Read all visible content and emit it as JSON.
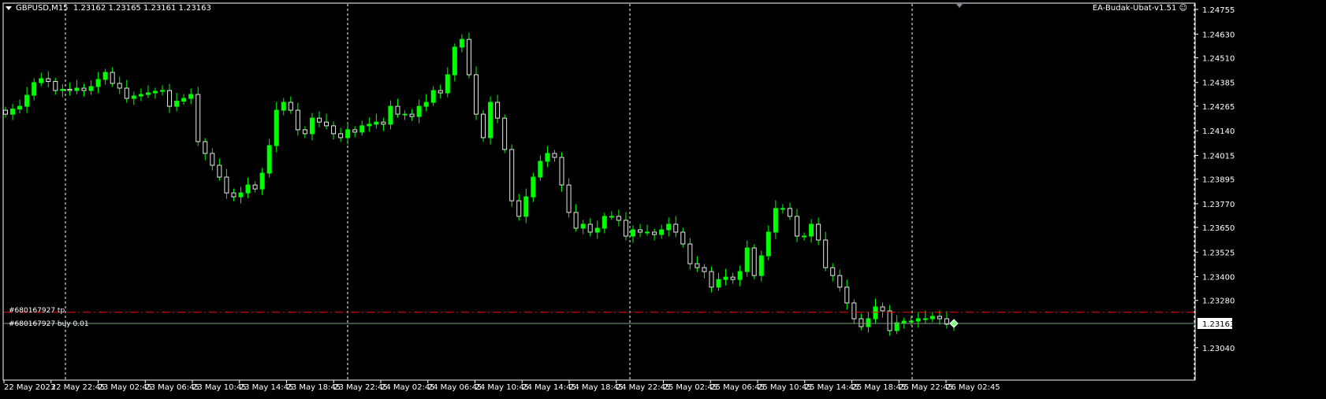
{
  "header": {
    "menu_icon": "triangle-down-icon",
    "symbol": "GBPUSD,M15",
    "ohlc": "1.23162 1.23165 1.23161 1.23163",
    "expert": "EA-Budak-Ubat-v1.51",
    "expert_icon": "smiley-icon"
  },
  "orders": {
    "tp_label": "#680167927 tp",
    "buy_label": "#680167927 buy 0.01",
    "tp_price": 1.2322,
    "open_price": 1.23163
  },
  "colors": {
    "background": "#000000",
    "candle": "#00ff00",
    "tp_line": "#ff0000",
    "price_line": "#c0c0c0",
    "grid": "#ffffff"
  },
  "chart_data": {
    "type": "candlestick",
    "current_price": "1.23163",
    "ylim": [
      1.2301,
      1.24785
    ],
    "yticks": [
      "1.24755",
      "1.24630",
      "1.24510",
      "1.24385",
      "1.24265",
      "1.24140",
      "1.24015",
      "1.23895",
      "1.23770",
      "1.23650",
      "1.23525",
      "1.23400",
      "1.23280",
      "1.23040"
    ],
    "xticks": [
      "22 May 2023",
      "22 May 22:45",
      "23 May 02:45",
      "23 May 06:45",
      "23 May 10:45",
      "23 May 14:45",
      "23 May 18:45",
      "23 May 22:45",
      "24 May 02:45",
      "24 May 06:45",
      "24 May 10:45",
      "24 May 14:45",
      "24 May 18:45",
      "24 May 22:45",
      "25 May 02:45",
      "25 May 06:45",
      "25 May 10:45",
      "25 May 14:45",
      "25 May 18:45",
      "25 May 22:45",
      "26 May 02:45"
    ],
    "day_separators": [
      "22 May 2023",
      "23 May",
      "24 May",
      "25 May",
      "26 May"
    ],
    "closes": [
      1.24224,
      1.2425,
      1.24264,
      1.2432,
      1.24384,
      1.24404,
      1.2439,
      1.24344,
      1.2435,
      1.24344,
      1.24356,
      1.24344,
      1.24364,
      1.244,
      1.24436,
      1.2438,
      1.24356,
      1.24304,
      1.24316,
      1.24324,
      1.24332,
      1.2434,
      1.24344,
      1.24264,
      1.2429,
      1.24304,
      1.24324,
      1.24085,
      1.24025,
      1.23965,
      1.23905,
      1.23825,
      1.23805,
      1.23825,
      1.23865,
      1.23845,
      1.23925,
      1.24065,
      1.24244,
      1.24284,
      1.24244,
      1.24145,
      1.24125,
      1.24204,
      1.24184,
      1.24165,
      1.24125,
      1.24105,
      1.24145,
      1.24133,
      1.24165,
      1.24173,
      1.24184,
      1.24173,
      1.24264,
      1.24224,
      1.24224,
      1.24212,
      1.24264,
      1.24284,
      1.24344,
      1.24332,
      1.24424,
      1.24564,
      1.24603,
      1.24424,
      1.24224,
      1.24105,
      1.24284,
      1.24204,
      1.24045,
      1.23785,
      1.23706,
      1.23805,
      1.23905,
      1.23985,
      1.24025,
      1.24005,
      1.23865,
      1.23726,
      1.23646,
      1.23666,
      1.23626,
      1.23646,
      1.23706,
      1.23706,
      1.23686,
      1.23606,
      1.23638,
      1.23626,
      1.23626,
      1.23614,
      1.23638,
      1.23666,
      1.23626,
      1.23566,
      1.23466,
      1.23446,
      1.23426,
      1.23347,
      1.23386,
      1.23398,
      1.23386,
      1.23426,
      1.23546,
      1.23406,
      1.23506,
      1.23626,
      1.23746,
      1.23746,
      1.23706,
      1.23606,
      1.23606,
      1.23666,
      1.23586,
      1.23446,
      1.23406,
      1.23347,
      1.23267,
      1.23187,
      1.23147,
      1.23187,
      1.23247,
      1.23227,
      1.23127,
      1.23167,
      1.23175,
      1.23175,
      1.23187,
      1.23187,
      1.23199,
      1.23187,
      1.23159,
      1.23163
    ]
  }
}
